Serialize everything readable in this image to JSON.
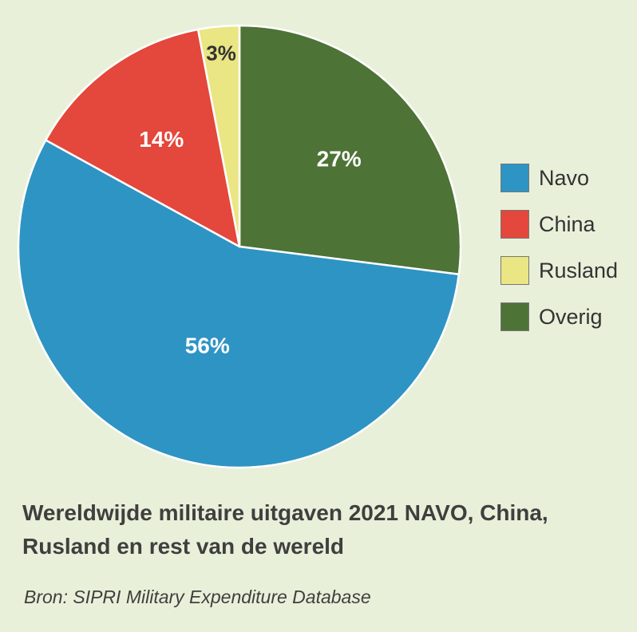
{
  "chart_data": {
    "type": "pie",
    "slices": [
      {
        "label": "Navo",
        "value": 56,
        "display": "56%",
        "color": "#2e94c4"
      },
      {
        "label": "China",
        "value": 14,
        "display": "14%",
        "color": "#e4473b"
      },
      {
        "label": "Rusland",
        "value": 3,
        "display": "3%",
        "color": "#e9e683"
      },
      {
        "label": "Overig",
        "value": 27,
        "display": "27%",
        "color": "#4d7336"
      }
    ],
    "title": "Wereldwijde militaire uitgaven 2021 NAVO, China, Rusland en rest van de wereld",
    "source": "Bron: SIPRI Military Expenditure Database",
    "legend_placement": "right",
    "label_colors": {
      "Navo": "#ffffff",
      "China": "#ffffff",
      "Rusland": "#333333",
      "Overig": "#ffffff"
    }
  }
}
